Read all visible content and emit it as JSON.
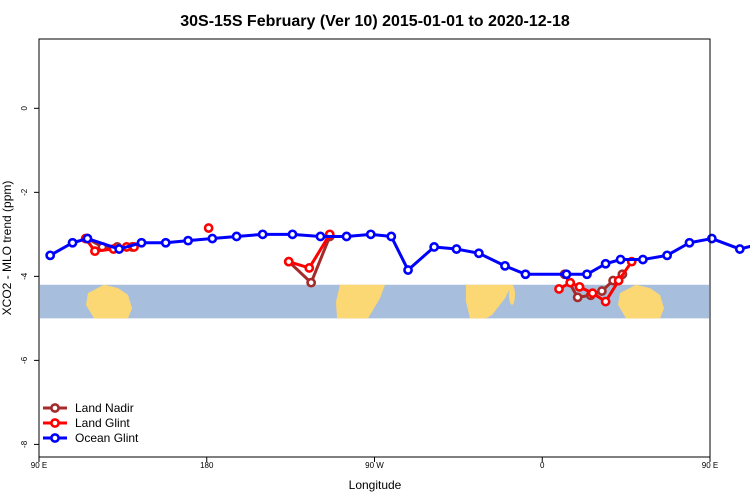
{
  "chart_data": {
    "type": "line",
    "title": "30S-15S February (Ver 10)   2015-01-01 to 2020-12-18",
    "xlabel": "Longitude",
    "ylabel": "XCO2 - MLO trend (ppm)",
    "xlim": [
      90,
      450
    ],
    "ylim": [
      -8.3,
      1.65
    ],
    "x_ticks": [
      {
        "value": 90,
        "label": "90 E"
      },
      {
        "value": 180,
        "label": "180"
      },
      {
        "value": 270,
        "label": "90 W"
      },
      {
        "value": 360,
        "label": "0"
      },
      {
        "value": 450,
        "label": "90 E"
      },
      {
        "value": 540,
        "label": "180"
      }
    ],
    "y_ticks": [
      {
        "value": 0,
        "label": "0"
      },
      {
        "value": -2,
        "label": "-2"
      },
      {
        "value": -4,
        "label": "-4"
      },
      {
        "value": -6,
        "label": "-6"
      },
      {
        "value": -8,
        "label": "-8"
      }
    ],
    "background_map": {
      "y_range": [
        -5.0,
        -4.2
      ],
      "ocean_color": "#a7bedc",
      "land_color": "#fcd874"
    },
    "legend_position": "bottom-left",
    "series": [
      {
        "name": "Land Nadir",
        "color": "#a52a2a",
        "segments": [
          [
            [
              116,
              -3.1
            ],
            [
              124,
              -3.3
            ],
            [
              132,
              -3.3
            ],
            [
              140,
              -3.3
            ]
          ],
          [
            [
              224,
              -3.65
            ],
            [
              236,
              -4.15
            ],
            [
              246,
              -3.05
            ]
          ],
          [
            [
              372,
              -3.95
            ],
            [
              379,
              -4.5
            ],
            [
              386,
              -4.45
            ],
            [
              392,
              -4.35
            ],
            [
              398,
              -4.1
            ],
            [
              403,
              -3.95
            ]
          ]
        ]
      },
      {
        "name": "Land Glint",
        "color": "#ff0000",
        "segments": [
          [
            [
              115,
              -3.1
            ],
            [
              120,
              -3.4
            ],
            [
              130,
              -3.35
            ],
            [
              137,
              -3.3
            ],
            [
              141,
              -3.3
            ]
          ],
          [
            [
              181,
              -2.85
            ]
          ],
          [
            [
              224,
              -3.65
            ],
            [
              235,
              -3.8
            ],
            [
              246,
              -3.0
            ]
          ],
          [
            [
              369,
              -4.3
            ],
            [
              375,
              -4.15
            ],
            [
              380,
              -4.25
            ],
            [
              387,
              -4.4
            ],
            [
              394,
              -4.6
            ],
            [
              401,
              -4.1
            ],
            [
              408,
              -3.65
            ]
          ]
        ]
      },
      {
        "name": "Ocean Glint",
        "color": "#0000ff",
        "segments": [
          [
            [
              96,
              -3.5
            ],
            [
              108,
              -3.2
            ],
            [
              116,
              -3.1
            ],
            [
              133,
              -3.35
            ],
            [
              145,
              -3.2
            ],
            [
              158,
              -3.2
            ],
            [
              170,
              -3.15
            ],
            [
              183,
              -3.1
            ],
            [
              196,
              -3.05
            ],
            [
              210,
              -3.0
            ],
            [
              226,
              -3.0
            ],
            [
              241,
              -3.05
            ],
            [
              255,
              -3.05
            ],
            [
              268,
              -3.0
            ],
            [
              279,
              -3.05
            ],
            [
              288,
              -3.85
            ],
            [
              302,
              -3.3
            ],
            [
              314,
              -3.35
            ],
            [
              326,
              -3.45
            ],
            [
              340,
              -3.75
            ],
            [
              351,
              -3.95
            ],
            [
              373,
              -3.95
            ],
            [
              384,
              -3.95
            ],
            [
              394,
              -3.7
            ],
            [
              402,
              -3.6
            ],
            [
              414,
              -3.6
            ],
            [
              427,
              -3.5
            ],
            [
              439,
              -3.2
            ],
            [
              451,
              -3.1
            ],
            [
              466,
              -3.35
            ],
            [
              479,
              -3.2
            ],
            [
              490,
              -3.2
            ],
            [
              507,
              -3.2
            ]
          ]
        ]
      }
    ]
  }
}
